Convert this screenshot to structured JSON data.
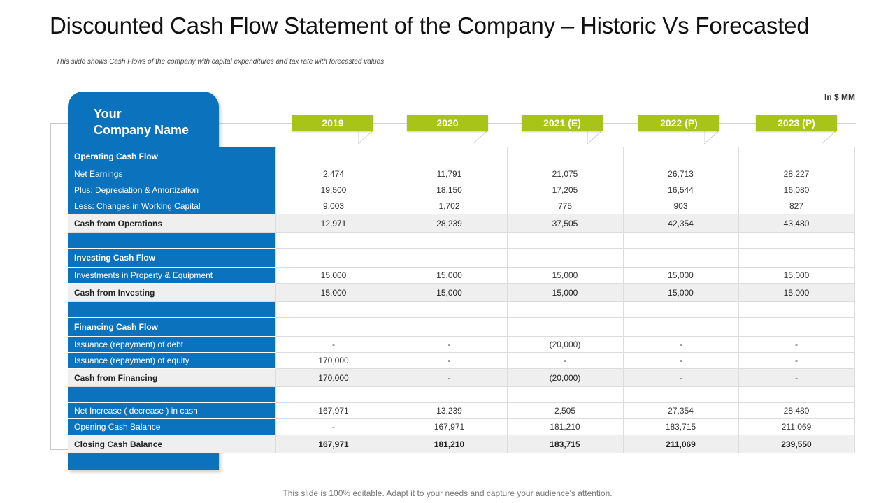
{
  "title": "Discounted Cash Flow Statement of the Company – Historic Vs Forecasted",
  "subtitle": "This slide shows Cash Flows of the company with capital expenditures and tax rate with forecasted values",
  "unit": "In $ MM",
  "company": {
    "line1": "Your",
    "line2": "Company Name"
  },
  "colors": {
    "brand_blue": "#0b72be",
    "year_green": "#a8c418",
    "total_row": "#efefef"
  },
  "years": [
    "2019",
    "2020",
    "2021 (E)",
    "2022 (P)",
    "2023 (P)"
  ],
  "rows": [
    {
      "type": "header",
      "label": "Operating Cash Flow",
      "values": [
        "",
        "",
        "",
        "",
        ""
      ]
    },
    {
      "type": "item",
      "label": "Net Earnings",
      "values": [
        "2,474",
        "11,791",
        "21,075",
        "26,713",
        "28,227"
      ]
    },
    {
      "type": "item",
      "label": "Plus: Depreciation & Amortization",
      "values": [
        "19,500",
        "18,150",
        "17,205",
        "16,544",
        "16,080"
      ]
    },
    {
      "type": "item",
      "label": "Less: Changes in Working Capital",
      "values": [
        "9,003",
        "1,702",
        "775",
        "903",
        "827"
      ]
    },
    {
      "type": "total",
      "label": "Cash from Operations",
      "values": [
        "12,971",
        "28,239",
        "37,505",
        "42,354",
        "43,480"
      ]
    },
    {
      "type": "spacer",
      "label": "",
      "values": [
        "",
        "",
        "",
        "",
        ""
      ]
    },
    {
      "type": "header",
      "label": "Investing Cash Flow",
      "values": [
        "",
        "",
        "",
        "",
        ""
      ]
    },
    {
      "type": "item",
      "label": "Investments in Property & Equipment",
      "values": [
        "15,000",
        "15,000",
        "15,000",
        "15,000",
        "15,000"
      ]
    },
    {
      "type": "total",
      "label": "Cash from Investing",
      "values": [
        "15,000",
        "15,000",
        "15,000",
        "15,000",
        "15,000"
      ]
    },
    {
      "type": "spacer",
      "label": "",
      "values": [
        "",
        "",
        "",
        "",
        ""
      ]
    },
    {
      "type": "header",
      "label": "Financing Cash Flow",
      "values": [
        "",
        "",
        "",
        "",
        ""
      ]
    },
    {
      "type": "item",
      "label": "Issuance (repayment) of debt",
      "values": [
        "-",
        "-",
        "(20,000)",
        "-",
        "-"
      ]
    },
    {
      "type": "item",
      "label": "Issuance (repayment) of equity",
      "values": [
        "170,000",
        "-",
        "-",
        "-",
        "-"
      ]
    },
    {
      "type": "total",
      "label": "Cash from Financing",
      "values": [
        "170,000",
        "-",
        "(20,000)",
        "-",
        "-"
      ]
    },
    {
      "type": "spacer",
      "label": "",
      "values": [
        "",
        "",
        "",
        "",
        ""
      ]
    },
    {
      "type": "item",
      "label": "Net Increase ( decrease ) in cash",
      "values": [
        "167,971",
        "13,239",
        "2,505",
        "27,354",
        "28,480"
      ]
    },
    {
      "type": "item",
      "label": "Opening Cash Balance",
      "values": [
        "-",
        "167,971",
        "181,210",
        "183,715",
        "211,069"
      ]
    },
    {
      "type": "total-strong",
      "label": "Closing Cash Balance",
      "values": [
        "167,971",
        "181,210",
        "183,715",
        "211,069",
        "239,550"
      ]
    }
  ],
  "footer": "This slide is 100% editable. Adapt it to your needs and capture your audience's attention."
}
